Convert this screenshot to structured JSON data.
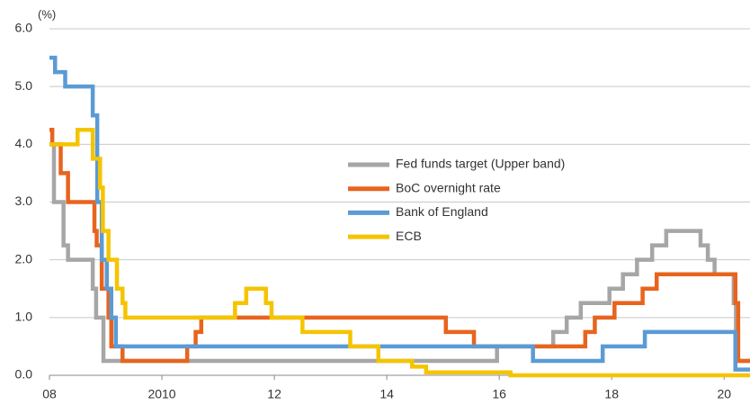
{
  "chart_data": {
    "type": "line",
    "step": true,
    "y_label": "(%)",
    "xlim": [
      2008,
      2020.46
    ],
    "ylim": [
      0,
      6
    ],
    "xticks": [
      {
        "value": 2008,
        "label": "08"
      },
      2010,
      {
        "value": 2012,
        "label": "12"
      },
      {
        "value": 2014,
        "label": "14"
      },
      {
        "value": 2016,
        "label": "16"
      },
      {
        "value": 2018,
        "label": "18"
      },
      {
        "value": 2020,
        "label": "20"
      }
    ],
    "yticks": [
      {
        "value": 0,
        "label": "0.0"
      },
      {
        "value": 1,
        "label": "1.0"
      },
      {
        "value": 2,
        "label": "2.0"
      },
      {
        "value": 3,
        "label": "3.0"
      },
      {
        "value": 4,
        "label": "4.0"
      },
      {
        "value": 5,
        "label": "5.0"
      },
      {
        "value": 6,
        "label": "6.0"
      }
    ],
    "grid": true,
    "series": [
      {
        "name": "Fed funds target (Upper band)",
        "color": "#a6a6a6",
        "x": [
          2008.0,
          2008.08,
          2008.25,
          2008.33,
          2008.77,
          2008.83,
          2008.96,
          2015.96,
          2016.96,
          2017.2,
          2017.45,
          2017.96,
          2018.2,
          2018.45,
          2018.72,
          2018.97,
          2019.58,
          2019.71,
          2019.83,
          2020.17,
          2020.21
        ],
        "values": [
          4.0,
          3.0,
          2.25,
          2.0,
          1.5,
          1.0,
          0.25,
          0.5,
          0.75,
          1.0,
          1.25,
          1.5,
          1.75,
          2.0,
          2.25,
          2.5,
          2.25,
          2.0,
          1.75,
          1.25,
          0.25
        ]
      },
      {
        "name": "BoC overnight rate",
        "color": "#e8641e",
        "x": [
          2008.0,
          2008.05,
          2008.2,
          2008.33,
          2008.8,
          2008.84,
          2008.93,
          2009.05,
          2009.1,
          2009.3,
          2010.45,
          2010.6,
          2010.7,
          2015.05,
          2015.55,
          2017.53,
          2017.7,
          2018.05,
          2018.55,
          2018.8,
          2020.2,
          2020.25
        ],
        "values": [
          4.25,
          4.0,
          3.5,
          3.0,
          2.5,
          2.25,
          1.5,
          1.0,
          0.5,
          0.25,
          0.5,
          0.75,
          1.0,
          0.75,
          0.5,
          0.75,
          1.0,
          1.25,
          1.5,
          1.75,
          1.25,
          0.25
        ]
      },
      {
        "name": "Bank of England",
        "color": "#5b9bd5",
        "x": [
          2008.0,
          2008.1,
          2008.28,
          2008.77,
          2008.85,
          2008.93,
          2009.02,
          2009.1,
          2009.18,
          2016.6,
          2017.84,
          2018.59,
          2020.2
        ],
        "values": [
          5.5,
          5.25,
          5.0,
          4.5,
          3.0,
          2.0,
          1.5,
          1.0,
          0.5,
          0.25,
          0.5,
          0.75,
          0.1
        ]
      },
      {
        "name": "ECB",
        "color": "#f5c400",
        "x": [
          2008.0,
          2008.5,
          2008.77,
          2008.9,
          2008.95,
          2009.05,
          2009.2,
          2009.3,
          2009.35,
          2011.3,
          2011.5,
          2011.85,
          2011.95,
          2012.5,
          2013.35,
          2013.85,
          2014.45,
          2014.7,
          2016.2
        ],
        "values": [
          4.0,
          4.25,
          3.75,
          3.25,
          2.5,
          2.0,
          1.5,
          1.25,
          1.0,
          1.25,
          1.5,
          1.25,
          1.0,
          0.75,
          0.5,
          0.25,
          0.15,
          0.05,
          0.0
        ]
      }
    ]
  }
}
